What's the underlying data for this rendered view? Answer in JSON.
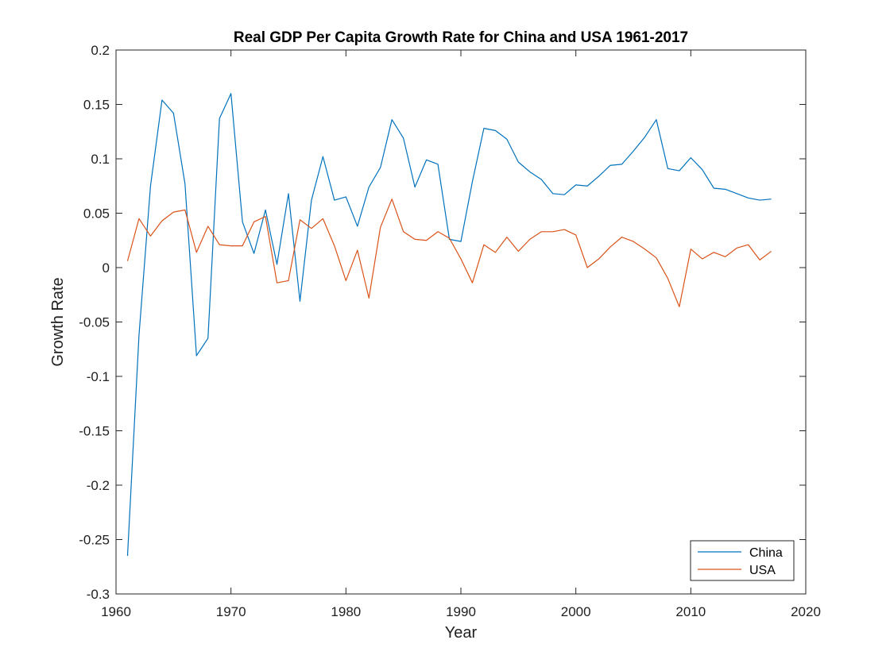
{
  "chart_data": {
    "type": "line",
    "title": "Real GDP Per Capita Growth Rate for China and USA 1961-2017",
    "xlabel": "Year",
    "ylabel": "Growth Rate",
    "xlim": [
      1960,
      2020
    ],
    "ylim": [
      -0.3,
      0.2
    ],
    "x_ticks": [
      "1960",
      "1970",
      "1980",
      "1990",
      "2000",
      "2010",
      "2020"
    ],
    "y_ticks": [
      "0.2",
      "0.15",
      "0.1",
      "0.05",
      "0",
      "-0.05",
      "-0.1",
      "-0.15",
      "-0.2",
      "-0.25",
      "-0.3"
    ],
    "x_tick_values": [
      1960,
      1970,
      1980,
      1990,
      2000,
      2010,
      2020
    ],
    "y_tick_values": [
      0.2,
      0.15,
      0.1,
      0.05,
      0,
      -0.05,
      -0.1,
      -0.15,
      -0.2,
      -0.25,
      -0.3
    ],
    "grid": false,
    "legend_position": "bottom-right",
    "x": [
      1961,
      1962,
      1963,
      1964,
      1965,
      1966,
      1967,
      1968,
      1969,
      1970,
      1971,
      1972,
      1973,
      1974,
      1975,
      1976,
      1977,
      1978,
      1979,
      1980,
      1981,
      1982,
      1983,
      1984,
      1985,
      1986,
      1987,
      1988,
      1989,
      1990,
      1991,
      1992,
      1993,
      1994,
      1995,
      1996,
      1997,
      1998,
      1999,
      2000,
      2001,
      2002,
      2003,
      2004,
      2005,
      2006,
      2007,
      2008,
      2009,
      2010,
      2011,
      2012,
      2013,
      2014,
      2015,
      2016,
      2017
    ],
    "series": [
      {
        "name": "China",
        "color": "#0072BD",
        "values": [
          -0.265,
          -0.062,
          0.075,
          0.154,
          0.142,
          0.077,
          -0.081,
          -0.065,
          0.137,
          0.16,
          0.042,
          0.013,
          0.053,
          0.003,
          0.068,
          -0.031,
          0.062,
          0.102,
          0.062,
          0.065,
          0.038,
          0.074,
          0.092,
          0.136,
          0.119,
          0.074,
          0.099,
          0.095,
          0.026,
          0.024,
          0.079,
          0.128,
          0.126,
          0.118,
          0.097,
          0.088,
          0.081,
          0.068,
          0.067,
          0.076,
          0.075,
          0.084,
          0.094,
          0.095,
          0.107,
          0.12,
          0.136,
          0.091,
          0.089,
          0.101,
          0.09,
          0.073,
          0.072,
          0.068,
          0.064,
          0.062,
          0.063
        ]
      },
      {
        "name": "USA",
        "color": "#D95319",
        "values": [
          0.006,
          0.045,
          0.029,
          0.043,
          0.051,
          0.053,
          0.014,
          0.038,
          0.021,
          0.02,
          0.02,
          0.042,
          0.047,
          -0.014,
          -0.012,
          0.044,
          0.036,
          0.045,
          0.02,
          -0.012,
          0.016,
          -0.028,
          0.037,
          0.063,
          0.033,
          0.026,
          0.025,
          0.033,
          0.027,
          0.008,
          -0.014,
          0.021,
          0.014,
          0.028,
          0.015,
          0.026,
          0.033,
          0.033,
          0.035,
          0.03,
          0.0,
          0.008,
          0.019,
          0.028,
          0.024,
          0.017,
          0.009,
          -0.01,
          -0.036,
          0.017,
          0.008,
          0.014,
          0.01,
          0.018,
          0.021,
          0.007,
          0.015
        ]
      }
    ]
  }
}
